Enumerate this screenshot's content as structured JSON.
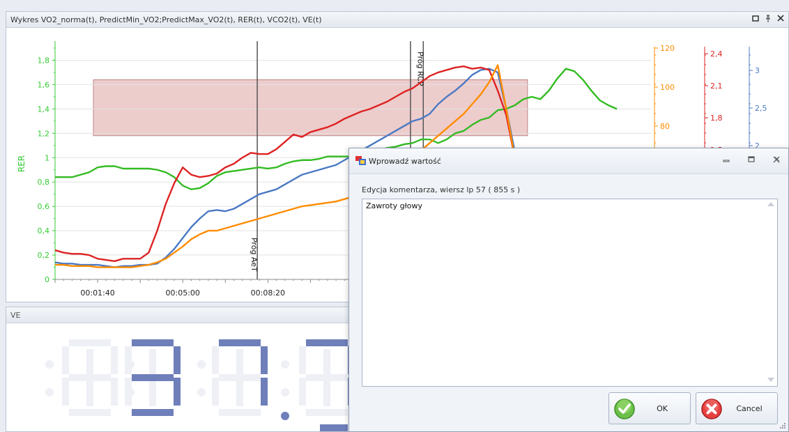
{
  "chart_panel": {
    "title": "Wykres VO2_norma(t), PredictMin_VO2;PredictMax_VO2(t), RER(t), VCO2(t), VE(t)",
    "restore_icon": "restore-window-icon",
    "pin_icon": "pin-icon",
    "close_icon": "close-icon"
  },
  "chart_data": {
    "type": "line",
    "ylabel": "RER",
    "y_left": {
      "min": 0,
      "max": 1.9,
      "ticks": [
        "0",
        "0,2",
        "0,4",
        "0,6",
        "0,8",
        "1",
        "1,2",
        "1,4",
        "1,6",
        "1,8"
      ],
      "color": "#33cc33"
    },
    "y_orange": {
      "ticks": [
        "120",
        "100",
        "80"
      ],
      "color": "#ff8c00"
    },
    "y_red": {
      "ticks": [
        "2,4",
        "2,1",
        "1,8",
        "1,5"
      ],
      "color": "#dd2222"
    },
    "y_blue": {
      "ticks": [
        "3",
        "2,5",
        "2"
      ],
      "color": "#4a79c3"
    },
    "x_ticks": [
      "00:01:40",
      "00:05:00",
      "00:08:20",
      "00"
    ],
    "x_tick_seconds": [
      100,
      300,
      500,
      700
    ],
    "x_range_seconds": [
      0,
      1400
    ],
    "band": {
      "y_min": 1.18,
      "y_max": 1.64,
      "color": "#dc9a9a"
    },
    "markers": [
      {
        "label": "Próg AeT",
        "x": 475
      },
      {
        "label": "",
        "x": 835
      },
      {
        "label": "Próg RCP",
        "x": 865
      }
    ],
    "series": [
      {
        "color": "#33bb22",
        "x": [
          0,
          20,
          40,
          60,
          80,
          100,
          120,
          140,
          160,
          180,
          200,
          220,
          240,
          260,
          280,
          300,
          320,
          340,
          360,
          380,
          400,
          420,
          440,
          460,
          480,
          500,
          520,
          540,
          560,
          580,
          600,
          620,
          640,
          660,
          680,
          700,
          720,
          740,
          760,
          780,
          800,
          820,
          840,
          860,
          880,
          900,
          920,
          940,
          960,
          980,
          1000,
          1020,
          1040,
          1060,
          1080,
          1100,
          1120,
          1140,
          1160,
          1180,
          1200,
          1220,
          1240,
          1260,
          1280,
          1300,
          1320
        ],
        "y": [
          0.84,
          0.84,
          0.84,
          0.86,
          0.88,
          0.92,
          0.93,
          0.93,
          0.91,
          0.91,
          0.91,
          0.91,
          0.9,
          0.88,
          0.84,
          0.77,
          0.74,
          0.75,
          0.79,
          0.85,
          0.88,
          0.89,
          0.9,
          0.91,
          0.92,
          0.91,
          0.92,
          0.95,
          0.97,
          0.98,
          0.98,
          0.99,
          1.01,
          1.01,
          1.01,
          1.01,
          1.02,
          1.03,
          1.06,
          1.08,
          1.09,
          1.11,
          1.12,
          1.15,
          1.15,
          1.12,
          1.15,
          1.2,
          1.22,
          1.27,
          1.31,
          1.33,
          1.39,
          1.4,
          1.43,
          1.48,
          1.5,
          1.48,
          1.55,
          1.65,
          1.73,
          1.71,
          1.64,
          1.55,
          1.47,
          1.43,
          1.4
        ]
      },
      {
        "color": "#4a79c3",
        "x": [
          0,
          20,
          40,
          60,
          80,
          100,
          120,
          140,
          160,
          180,
          200,
          220,
          240,
          260,
          280,
          300,
          320,
          340,
          360,
          380,
          400,
          420,
          440,
          460,
          480,
          500,
          520,
          540,
          560,
          580,
          600,
          620,
          640,
          660,
          680,
          700,
          720,
          740,
          760,
          780,
          800,
          820,
          840,
          860,
          880,
          900,
          920,
          940,
          960,
          980,
          1000,
          1020,
          1040,
          1060,
          1080
        ],
        "y": [
          0.14,
          0.13,
          0.13,
          0.12,
          0.12,
          0.12,
          0.11,
          0.1,
          0.11,
          0.11,
          0.12,
          0.12,
          0.13,
          0.18,
          0.25,
          0.34,
          0.43,
          0.5,
          0.56,
          0.57,
          0.56,
          0.58,
          0.62,
          0.66,
          0.7,
          0.72,
          0.74,
          0.78,
          0.82,
          0.86,
          0.88,
          0.9,
          0.92,
          0.94,
          0.98,
          1.02,
          1.06,
          1.1,
          1.14,
          1.18,
          1.22,
          1.26,
          1.3,
          1.32,
          1.36,
          1.44,
          1.5,
          1.55,
          1.61,
          1.68,
          1.72,
          1.73,
          1.7,
          1.4,
          1.05
        ]
      },
      {
        "color": "#dd2222",
        "x": [
          0,
          20,
          40,
          60,
          80,
          100,
          120,
          140,
          160,
          180,
          200,
          220,
          240,
          260,
          280,
          300,
          320,
          340,
          360,
          380,
          400,
          420,
          440,
          460,
          480,
          500,
          520,
          540,
          560,
          580,
          600,
          620,
          640,
          660,
          680,
          700,
          720,
          740,
          760,
          780,
          800,
          820,
          840,
          860,
          880,
          900,
          920,
          940,
          960,
          980,
          1000,
          1020,
          1040,
          1060,
          1080
        ],
        "y": [
          0.24,
          0.22,
          0.21,
          0.21,
          0.2,
          0.17,
          0.16,
          0.15,
          0.17,
          0.17,
          0.17,
          0.22,
          0.4,
          0.62,
          0.79,
          0.92,
          0.86,
          0.84,
          0.85,
          0.87,
          0.92,
          0.95,
          1.0,
          1.04,
          1.03,
          1.03,
          1.07,
          1.13,
          1.19,
          1.17,
          1.21,
          1.23,
          1.25,
          1.28,
          1.32,
          1.35,
          1.38,
          1.4,
          1.43,
          1.46,
          1.5,
          1.54,
          1.57,
          1.62,
          1.67,
          1.7,
          1.72,
          1.74,
          1.75,
          1.73,
          1.74,
          1.72,
          1.55,
          1.35,
          1.0
        ]
      },
      {
        "color": "#ff8c00",
        "x": [
          0,
          20,
          40,
          60,
          80,
          100,
          120,
          140,
          160,
          180,
          200,
          220,
          240,
          260,
          280,
          300,
          320,
          340,
          360,
          380,
          400,
          420,
          440,
          460,
          480,
          500,
          520,
          540,
          560,
          580,
          600,
          620,
          640,
          660,
          680,
          700,
          720,
          740,
          760,
          780,
          800,
          820,
          840,
          860,
          880,
          900,
          920,
          940,
          960,
          980,
          1000,
          1020,
          1040,
          1060,
          1080
        ],
        "y": [
          0.12,
          0.12,
          0.11,
          0.11,
          0.11,
          0.1,
          0.1,
          0.1,
          0.1,
          0.1,
          0.11,
          0.12,
          0.14,
          0.17,
          0.22,
          0.27,
          0.33,
          0.37,
          0.4,
          0.4,
          0.42,
          0.44,
          0.46,
          0.48,
          0.5,
          0.52,
          0.54,
          0.56,
          0.58,
          0.6,
          0.61,
          0.62,
          0.63,
          0.64,
          0.66,
          0.68,
          0.7,
          0.72,
          0.74,
          0.78,
          0.84,
          0.9,
          0.98,
          1.06,
          1.12,
          1.18,
          1.24,
          1.3,
          1.36,
          1.44,
          1.52,
          1.62,
          1.76,
          1.4,
          1.0
        ]
      }
    ]
  },
  "ve_panel": {
    "title": "VE",
    "digits": [
      "3",
      "7",
      "7",
      "1"
    ],
    "decimal_after_index": 1
  },
  "dialog": {
    "title": "Wprowadź wartość",
    "label": "Edycja komentarza, wiersz lp 57 ( 855 s )",
    "comment_value": "Zawroty głowy",
    "ok_label": "OK",
    "cancel_label": "Cancel",
    "ok_icon": "check-icon",
    "cancel_icon": "x-icon",
    "minimize_icon": "minimize-icon",
    "maximize_icon": "maximize-icon",
    "close_icon": "close-icon"
  }
}
